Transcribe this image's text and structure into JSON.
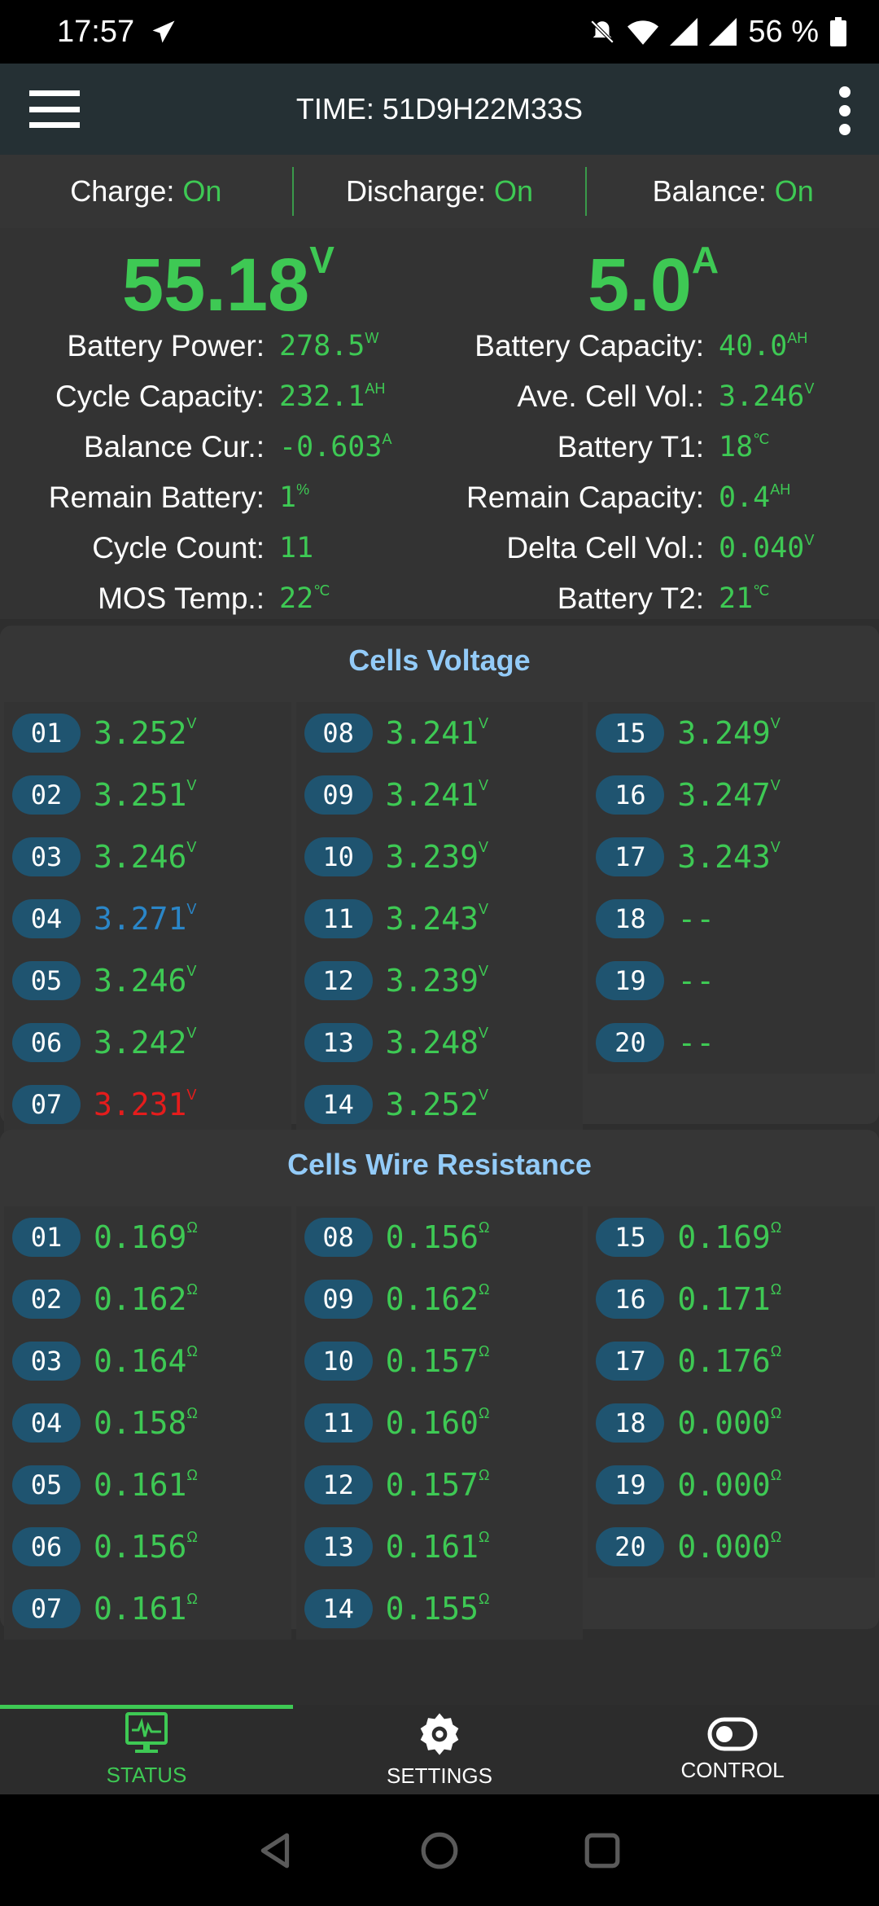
{
  "status_bar": {
    "time": "17:57",
    "battery": "56 %",
    "icons": [
      "telegram-icon",
      "bell-off-icon",
      "wifi-icon",
      "signal-icon",
      "signal-icon",
      "battery-icon"
    ]
  },
  "app_bar": {
    "title": "TIME: 51D9H22M33S"
  },
  "switches": [
    {
      "label": "Charge:",
      "value": "On"
    },
    {
      "label": "Discharge:",
      "value": "On"
    },
    {
      "label": "Balance:",
      "value": "On"
    }
  ],
  "summary": {
    "voltage": {
      "value": "55.18",
      "unit": "V"
    },
    "current": {
      "value": "5.0",
      "unit": "A"
    },
    "left": [
      {
        "label": "Battery Power:",
        "value": "278.5",
        "unit": "W"
      },
      {
        "label": "Cycle Capacity:",
        "value": "232.1",
        "unit": "AH"
      },
      {
        "label": "Balance Cur.:",
        "value": "-0.603",
        "unit": "A"
      },
      {
        "label": "Remain Battery:",
        "value": "1",
        "unit": "%"
      },
      {
        "label": "Cycle Count:",
        "value": "11",
        "unit": ""
      },
      {
        "label": "MOS Temp.:",
        "value": "22",
        "unit": "℃"
      }
    ],
    "right": [
      {
        "label": "Battery Capacity:",
        "value": "40.0",
        "unit": "AH"
      },
      {
        "label": "Ave. Cell Vol.:",
        "value": "3.246",
        "unit": "V"
      },
      {
        "label": "Battery T1:",
        "value": "18",
        "unit": "℃"
      },
      {
        "label": "Remain Capacity:",
        "value": "0.4",
        "unit": "AH"
      },
      {
        "label": "Delta Cell Vol.:",
        "value": "0.040",
        "unit": "V"
      },
      {
        "label": "Battery T2:",
        "value": "21",
        "unit": "℃"
      }
    ]
  },
  "colors": {
    "normal": "#3ec954",
    "max": "#2a86c8",
    "min": "#e51c1c"
  },
  "cells_voltage": {
    "title": "Cells Voltage",
    "unit": "V",
    "cells": [
      {
        "id": "01",
        "value": "3.252"
      },
      {
        "id": "02",
        "value": "3.251"
      },
      {
        "id": "03",
        "value": "3.246"
      },
      {
        "id": "04",
        "value": "3.271",
        "state": "max"
      },
      {
        "id": "05",
        "value": "3.246"
      },
      {
        "id": "06",
        "value": "3.242"
      },
      {
        "id": "07",
        "value": "3.231",
        "state": "min"
      },
      {
        "id": "08",
        "value": "3.241"
      },
      {
        "id": "09",
        "value": "3.241"
      },
      {
        "id": "10",
        "value": "3.239"
      },
      {
        "id": "11",
        "value": "3.243"
      },
      {
        "id": "12",
        "value": "3.239"
      },
      {
        "id": "13",
        "value": "3.248"
      },
      {
        "id": "14",
        "value": "3.252"
      },
      {
        "id": "15",
        "value": "3.249"
      },
      {
        "id": "16",
        "value": "3.247"
      },
      {
        "id": "17",
        "value": "3.243"
      },
      {
        "id": "18",
        "value": "--"
      },
      {
        "id": "19",
        "value": "--"
      },
      {
        "id": "20",
        "value": "--"
      }
    ]
  },
  "cells_resistance": {
    "title": "Cells Wire Resistance",
    "unit": "Ω",
    "cells": [
      {
        "id": "01",
        "value": "0.169"
      },
      {
        "id": "02",
        "value": "0.162"
      },
      {
        "id": "03",
        "value": "0.164"
      },
      {
        "id": "04",
        "value": "0.158"
      },
      {
        "id": "05",
        "value": "0.161"
      },
      {
        "id": "06",
        "value": "0.156"
      },
      {
        "id": "07",
        "value": "0.161"
      },
      {
        "id": "08",
        "value": "0.156"
      },
      {
        "id": "09",
        "value": "0.162"
      },
      {
        "id": "10",
        "value": "0.157"
      },
      {
        "id": "11",
        "value": "0.160"
      },
      {
        "id": "12",
        "value": "0.157"
      },
      {
        "id": "13",
        "value": "0.161"
      },
      {
        "id": "14",
        "value": "0.155"
      },
      {
        "id": "15",
        "value": "0.169"
      },
      {
        "id": "16",
        "value": "0.171"
      },
      {
        "id": "17",
        "value": "0.176"
      },
      {
        "id": "18",
        "value": "0.000"
      },
      {
        "id": "19",
        "value": "0.000"
      },
      {
        "id": "20",
        "value": "0.000"
      }
    ]
  },
  "bottom_nav": [
    {
      "label": "STATUS",
      "icon": "monitor-pulse-icon",
      "active": true
    },
    {
      "label": "SETTINGS",
      "icon": "gear-icon"
    },
    {
      "label": "CONTROL",
      "icon": "toggle-icon"
    }
  ]
}
